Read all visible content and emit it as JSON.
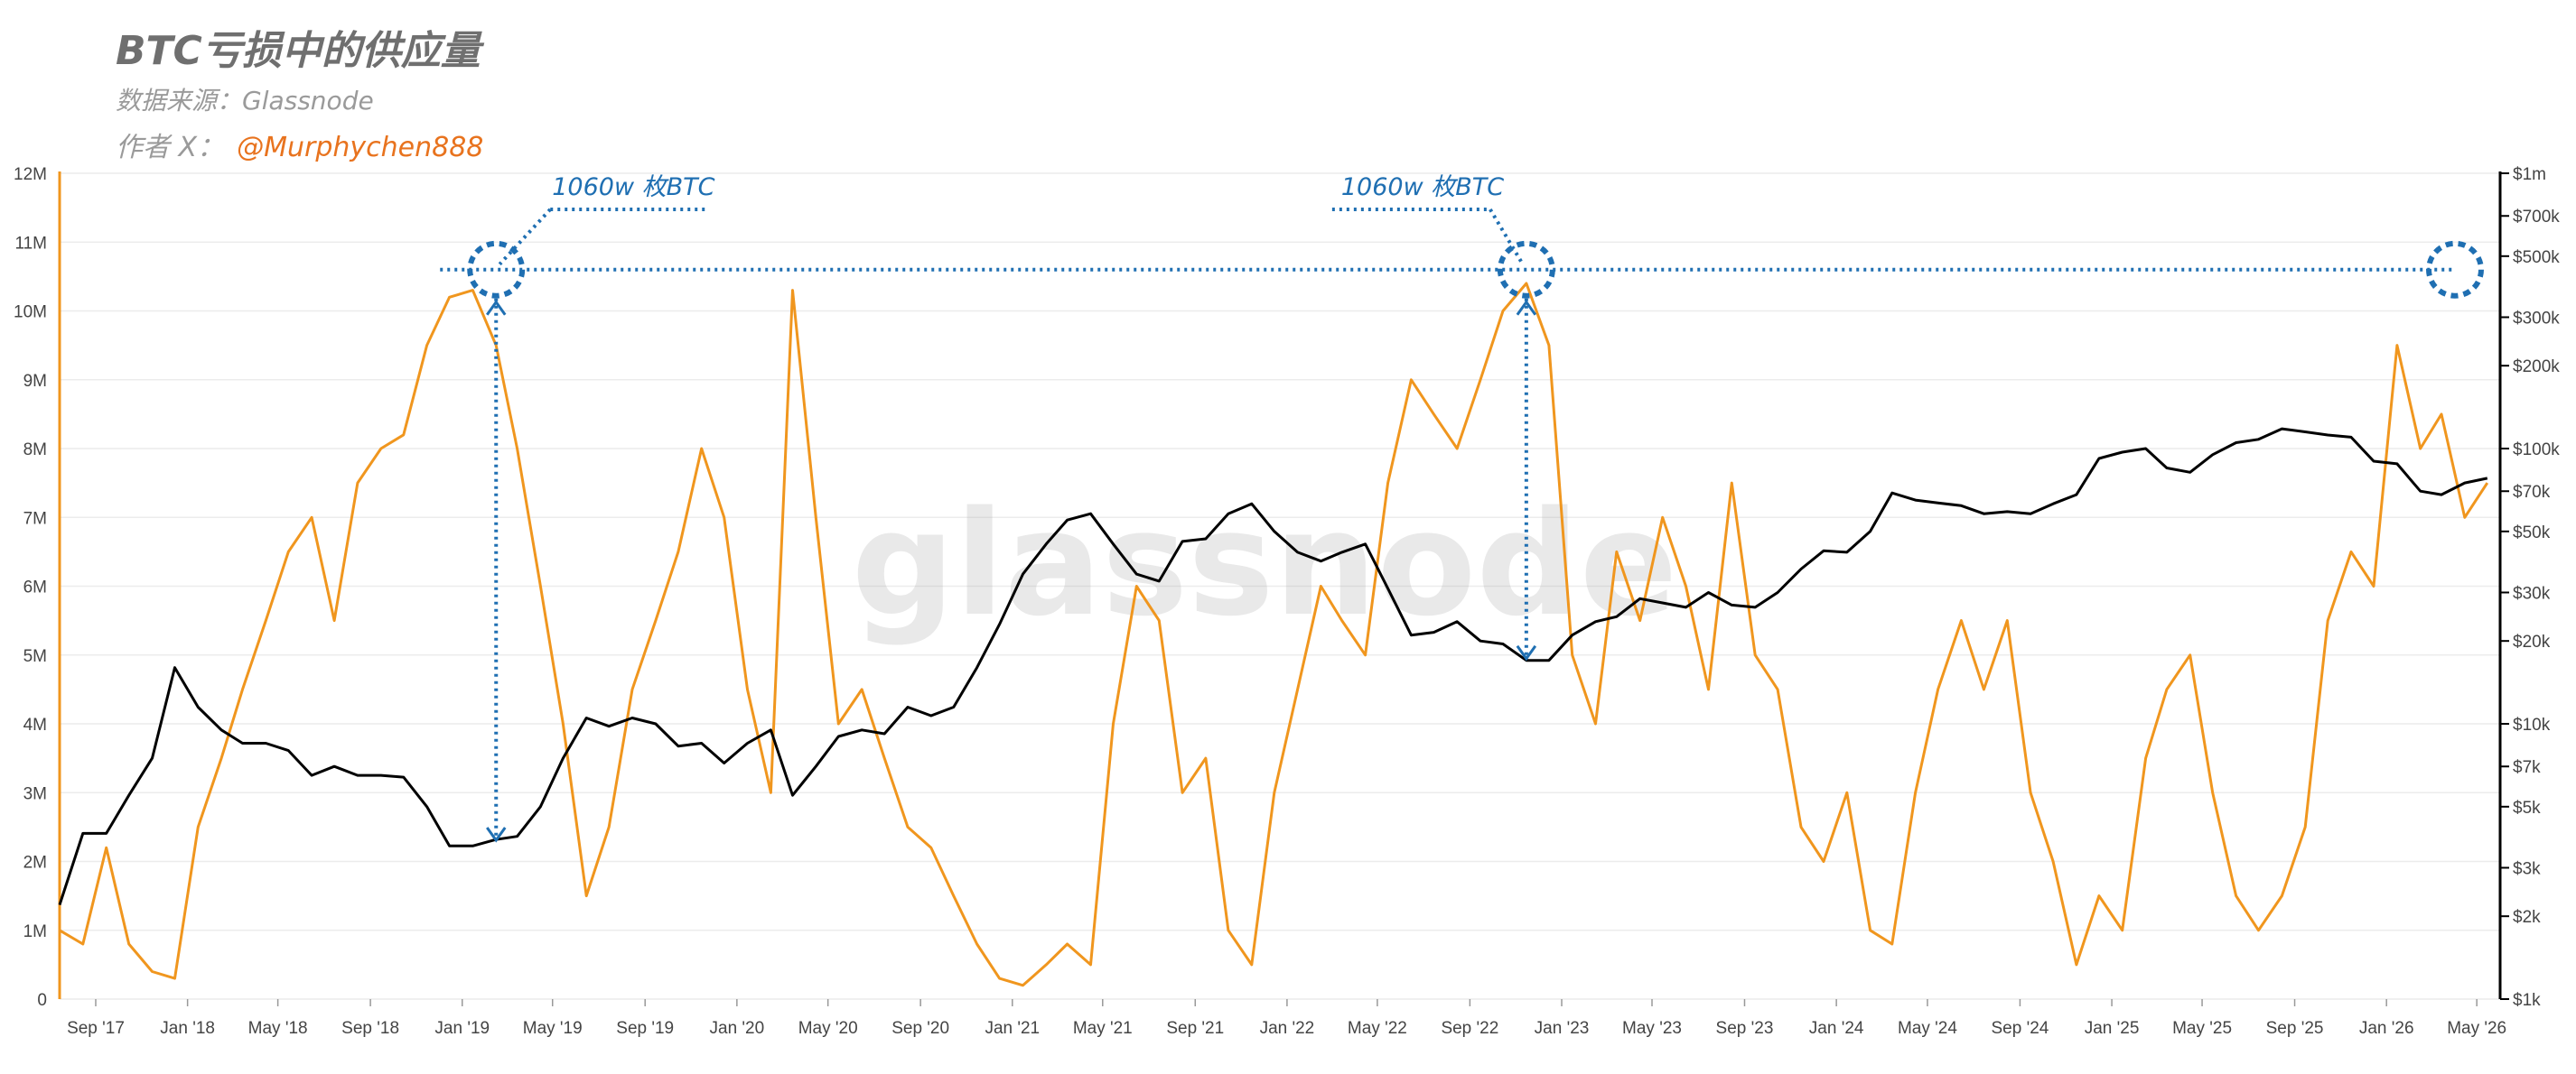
{
  "header": {
    "title": "BTC亏损中的供应量",
    "source": "数据来源：Glassnode",
    "author_prefix": "作者 X：",
    "author_handle": "@Murphychen888"
  },
  "watermark": "glassnode",
  "colors": {
    "supply_in_loss": "#f0961e",
    "price": "#000000",
    "annotation": "#1f6fb2",
    "grid": "#ececec",
    "tick_text": "#444444"
  },
  "chart_data": {
    "type": "line",
    "left_axis": {
      "ylim": [
        0,
        12000000
      ],
      "ticks": [
        0,
        1000000,
        2000000,
        3000000,
        4000000,
        5000000,
        6000000,
        7000000,
        8000000,
        9000000,
        10000000,
        11000000,
        12000000
      ],
      "tick_labels": [
        "0",
        "1M",
        "2M",
        "3M",
        "4M",
        "5M",
        "6M",
        "7M",
        "8M",
        "9M",
        "10M",
        "11M",
        "12M"
      ]
    },
    "right_axis": {
      "scale": "log",
      "ylim": [
        1000,
        1000000
      ],
      "ticks": [
        1000,
        2000,
        3000,
        5000,
        7000,
        10000,
        20000,
        30000,
        50000,
        70000,
        100000,
        200000,
        300000,
        500000,
        700000,
        1000000
      ],
      "tick_labels": [
        "$1k",
        "$2k",
        "$3k",
        "$5k",
        "$7k",
        "$10k",
        "$20k",
        "$30k",
        "$50k",
        "$70k",
        "$100k",
        "$200k",
        "$300k",
        "$500k",
        "$700k",
        "$1m"
      ]
    },
    "x_axis": {
      "xlim": [
        "2017-07-15",
        "2026-06-01"
      ],
      "ticks": [
        "2017-09-01",
        "2018-01-01",
        "2018-05-01",
        "2018-09-01",
        "2019-01-01",
        "2019-05-01",
        "2019-09-01",
        "2020-01-01",
        "2020-05-01",
        "2020-09-01",
        "2021-01-01",
        "2021-05-01",
        "2021-09-01",
        "2022-01-01",
        "2022-05-01",
        "2022-09-01",
        "2023-01-01",
        "2023-05-01",
        "2023-09-01",
        "2024-01-01",
        "2024-05-01",
        "2024-09-01",
        "2025-01-01",
        "2025-05-01",
        "2025-09-01",
        "2026-01-01",
        "2026-05-01"
      ],
      "tick_labels": [
        "Sep '17",
        "Jan '18",
        "May '18",
        "Sep '18",
        "Jan '19",
        "May '19",
        "Sep '19",
        "Jan '20",
        "May '20",
        "Sep '20",
        "Jan '21",
        "May '21",
        "Sep '21",
        "Jan '22",
        "May '22",
        "Sep '22",
        "Jan '23",
        "May '23",
        "Sep '23",
        "Jan '24",
        "May '24",
        "Sep '24",
        "Jan '25",
        "May '25",
        "Sep '25",
        "Jan '26",
        "May '26"
      ]
    },
    "series": [
      {
        "key": "supply_in_loss",
        "axis": "left",
        "x": [
          "2017-07-15",
          "2017-08-15",
          "2017-09-15",
          "2017-10-15",
          "2017-11-15",
          "2017-12-15",
          "2018-01-15",
          "2018-02-15",
          "2018-03-15",
          "2018-04-15",
          "2018-05-15",
          "2018-06-15",
          "2018-07-15",
          "2018-08-15",
          "2018-09-15",
          "2018-10-15",
          "2018-11-15",
          "2018-12-15",
          "2019-01-15",
          "2019-02-15",
          "2019-03-15",
          "2019-04-15",
          "2019-05-15",
          "2019-06-15",
          "2019-07-15",
          "2019-08-15",
          "2019-09-15",
          "2019-10-15",
          "2019-11-15",
          "2019-12-15",
          "2020-01-15",
          "2020-02-15",
          "2020-03-15",
          "2020-04-15",
          "2020-05-15",
          "2020-06-15",
          "2020-07-15",
          "2020-08-15",
          "2020-09-15",
          "2020-10-15",
          "2020-11-15",
          "2020-12-15",
          "2021-01-15",
          "2021-02-15",
          "2021-03-15",
          "2021-04-15",
          "2021-05-15",
          "2021-06-15",
          "2021-07-15",
          "2021-08-15",
          "2021-09-15",
          "2021-10-15",
          "2021-11-15",
          "2021-12-15",
          "2022-01-15",
          "2022-02-15",
          "2022-03-15",
          "2022-04-15",
          "2022-05-15",
          "2022-06-15",
          "2022-07-15",
          "2022-08-15",
          "2022-09-15",
          "2022-10-15",
          "2022-11-15",
          "2022-12-15",
          "2023-01-15",
          "2023-02-15",
          "2023-03-15",
          "2023-04-15",
          "2023-05-15",
          "2023-06-15",
          "2023-07-15",
          "2023-08-15",
          "2023-09-15",
          "2023-10-15",
          "2023-11-15",
          "2023-12-15",
          "2024-01-15",
          "2024-02-15",
          "2024-03-15",
          "2024-04-15",
          "2024-05-15",
          "2024-06-15",
          "2024-07-15",
          "2024-08-15",
          "2024-09-15",
          "2024-10-15",
          "2024-11-15",
          "2024-12-15",
          "2025-01-15",
          "2025-02-15",
          "2025-03-15",
          "2025-04-15",
          "2025-05-15",
          "2025-06-15",
          "2025-07-15",
          "2025-08-15",
          "2025-09-15",
          "2025-10-15",
          "2025-11-15",
          "2025-12-15",
          "2026-01-15",
          "2026-02-15",
          "2026-03-15",
          "2026-04-15",
          "2026-05-15"
        ],
        "y": [
          1000000,
          800000,
          2200000,
          800000,
          400000,
          300000,
          2500000,
          3500000,
          4500000,
          5500000,
          6500000,
          7000000,
          5500000,
          7500000,
          8000000,
          8200000,
          9500000,
          10200000,
          10300000,
          9500000,
          8000000,
          6000000,
          4000000,
          1500000,
          2500000,
          4500000,
          5500000,
          6500000,
          8000000,
          7000000,
          4500000,
          3000000,
          10300000,
          7000000,
          4000000,
          4500000,
          3500000,
          2500000,
          2200000,
          1500000,
          800000,
          300000,
          200000,
          500000,
          800000,
          500000,
          4000000,
          6000000,
          5500000,
          3000000,
          3500000,
          1000000,
          500000,
          3000000,
          4500000,
          6000000,
          5500000,
          5000000,
          7500000,
          9000000,
          8500000,
          8000000,
          9000000,
          10000000,
          10400000,
          9500000,
          5000000,
          4000000,
          6500000,
          5500000,
          7000000,
          6000000,
          4500000,
          7500000,
          5000000,
          4500000,
          2500000,
          2000000,
          3000000,
          1000000,
          800000,
          3000000,
          4500000,
          5500000,
          4500000,
          5500000,
          3000000,
          2000000,
          500000,
          1500000,
          1000000,
          3500000,
          4500000,
          5000000,
          3000000,
          1500000,
          1000000,
          1500000,
          2500000,
          5500000,
          6500000,
          6000000,
          9500000,
          8000000,
          8500000,
          7000000,
          7500000
        ]
      },
      {
        "key": "price",
        "axis": "right",
        "x": [
          "2017-07-15",
          "2017-08-15",
          "2017-09-15",
          "2017-10-15",
          "2017-11-15",
          "2017-12-15",
          "2018-01-15",
          "2018-02-15",
          "2018-03-15",
          "2018-04-15",
          "2018-05-15",
          "2018-06-15",
          "2018-07-15",
          "2018-08-15",
          "2018-09-15",
          "2018-10-15",
          "2018-11-15",
          "2018-12-15",
          "2019-01-15",
          "2019-02-15",
          "2019-03-15",
          "2019-04-15",
          "2019-05-15",
          "2019-06-15",
          "2019-07-15",
          "2019-08-15",
          "2019-09-15",
          "2019-10-15",
          "2019-11-15",
          "2019-12-15",
          "2020-01-15",
          "2020-02-15",
          "2020-03-15",
          "2020-04-15",
          "2020-05-15",
          "2020-06-15",
          "2020-07-15",
          "2020-08-15",
          "2020-09-15",
          "2020-10-15",
          "2020-11-15",
          "2020-12-15",
          "2021-01-15",
          "2021-02-15",
          "2021-03-15",
          "2021-04-15",
          "2021-05-15",
          "2021-06-15",
          "2021-07-15",
          "2021-08-15",
          "2021-09-15",
          "2021-10-15",
          "2021-11-15",
          "2021-12-15",
          "2022-01-15",
          "2022-02-15",
          "2022-03-15",
          "2022-04-15",
          "2022-05-15",
          "2022-06-15",
          "2022-07-15",
          "2022-08-15",
          "2022-09-15",
          "2022-10-15",
          "2022-11-15",
          "2022-12-15",
          "2023-01-15",
          "2023-02-15",
          "2023-03-15",
          "2023-04-15",
          "2023-05-15",
          "2023-06-15",
          "2023-07-15",
          "2023-08-15",
          "2023-09-15",
          "2023-10-15",
          "2023-11-15",
          "2023-12-15",
          "2024-01-15",
          "2024-02-15",
          "2024-03-15",
          "2024-04-15",
          "2024-05-15",
          "2024-06-15",
          "2024-07-15",
          "2024-08-15",
          "2024-09-15",
          "2024-10-15",
          "2024-11-15",
          "2024-12-15",
          "2025-01-15",
          "2025-02-15",
          "2025-03-15",
          "2025-04-15",
          "2025-05-15",
          "2025-06-15",
          "2025-07-15",
          "2025-08-15",
          "2025-09-15",
          "2025-10-15",
          "2025-11-15",
          "2025-12-15",
          "2026-01-15",
          "2026-02-15",
          "2026-03-15",
          "2026-04-15",
          "2026-05-15"
        ],
        "y": [
          2200,
          4000,
          4000,
          5500,
          7500,
          16000,
          11500,
          9500,
          8500,
          8500,
          8000,
          6500,
          7000,
          6500,
          6500,
          6400,
          5000,
          3600,
          3600,
          3800,
          3900,
          5000,
          7500,
          10500,
          9800,
          10500,
          10000,
          8300,
          8500,
          7200,
          8500,
          9500,
          5500,
          7000,
          9000,
          9500,
          9200,
          11500,
          10700,
          11500,
          16000,
          23000,
          35000,
          45000,
          55000,
          58000,
          45000,
          35000,
          33000,
          46000,
          47000,
          58000,
          63000,
          50000,
          42000,
          39000,
          42000,
          45000,
          31000,
          21000,
          21500,
          23500,
          20000,
          19500,
          17000,
          17000,
          21000,
          23500,
          24500,
          28500,
          27500,
          26500,
          30000,
          27000,
          26500,
          30000,
          36500,
          42500,
          42000,
          50000,
          69000,
          65000,
          63500,
          62000,
          58000,
          59000,
          58000,
          63000,
          68000,
          92000,
          97000,
          100000,
          85000,
          82000,
          95000,
          105000,
          108000,
          118000,
          115000,
          112000,
          110000,
          90000,
          88000,
          70000,
          68000,
          75000,
          78000
        ]
      }
    ],
    "annotations": [
      {
        "text": "1060w 枚BTC",
        "date": "2019-02-15",
        "value": 10600000,
        "price_low": 3500
      },
      {
        "text": "1060w 枚BTC",
        "date": "2022-11-15",
        "value": 10600000,
        "price_low": 16000
      }
    ],
    "grid": true
  }
}
